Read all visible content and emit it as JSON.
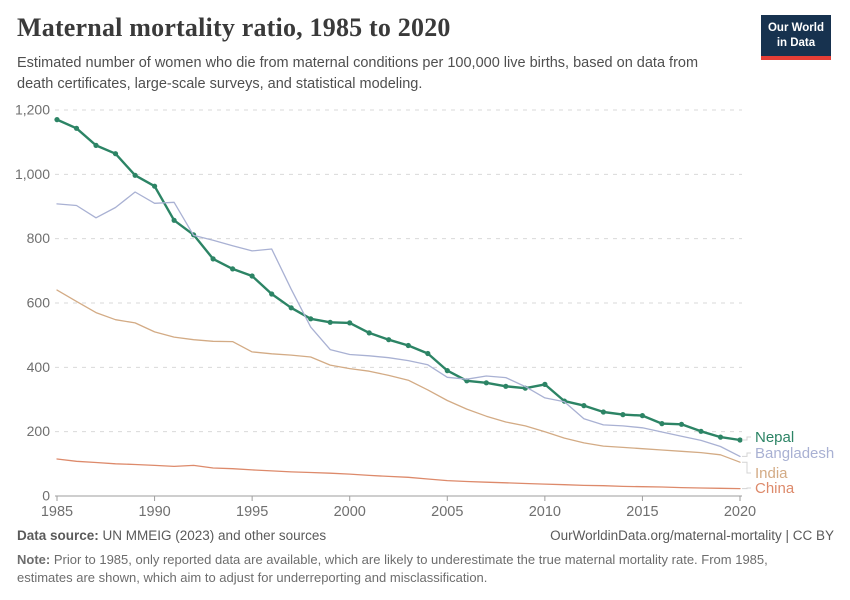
{
  "header": {
    "title": "Maternal mortality ratio, 1985 to 2020",
    "subtitle": "Estimated number of women who die from maternal conditions per 100,000 live births, based on data from death certificates, large-scale surveys, and statistical modeling."
  },
  "logo": {
    "line1": "Our World",
    "line2": "in Data",
    "bg_color": "#17324f",
    "accent_color": "#e63e36"
  },
  "footer": {
    "source_label": "Data source:",
    "source_text": " UN MMEIG (2023) and other sources",
    "link_text": "OurWorldinData.org/maternal-mortality | CC BY",
    "note_label": "Note:",
    "note_text": " Prior to 1985, only reported data are available, which are likely to underestimate the true maternal mortality rate. From 1985, estimates are shown, which aim to adjust for underreporting and misclassification."
  },
  "chart_data": {
    "type": "line",
    "title": "Maternal mortality ratio, 1985 to 2020",
    "xlabel": "",
    "ylabel": "",
    "x": [
      1985,
      1986,
      1987,
      1988,
      1989,
      1990,
      1991,
      1992,
      1993,
      1994,
      1995,
      1996,
      1997,
      1998,
      1999,
      2000,
      2001,
      2002,
      2003,
      2004,
      2005,
      2006,
      2007,
      2008,
      2009,
      2010,
      2011,
      2012,
      2013,
      2014,
      2015,
      2016,
      2017,
      2018,
      2019,
      2020
    ],
    "series": [
      {
        "name": "Nepal",
        "color": "#2c8465",
        "highlighted": true,
        "label_y": 437,
        "values": [
          1170,
          1143,
          1090,
          1064,
          997,
          963,
          857,
          812,
          737,
          706,
          684,
          628,
          585,
          551,
          540,
          538,
          507,
          486,
          468,
          443,
          390,
          358,
          352,
          341,
          335,
          347,
          295,
          281,
          261,
          253,
          250,
          225,
          223,
          201,
          183,
          174
        ]
      },
      {
        "name": "Bangladesh",
        "color": "#a9b1d3",
        "highlighted": false,
        "label_y": 453,
        "values": [
          908,
          903,
          865,
          897,
          945,
          910,
          913,
          810,
          795,
          778,
          762,
          768,
          643,
          525,
          455,
          440,
          436,
          430,
          421,
          408,
          369,
          363,
          373,
          368,
          340,
          305,
          293,
          240,
          221,
          218,
          212,
          199,
          186,
          173,
          154,
          123
        ]
      },
      {
        "name": "India",
        "color": "#d3ab85",
        "highlighted": false,
        "label_y": 473,
        "values": [
          640,
          605,
          570,
          548,
          538,
          510,
          494,
          486,
          481,
          480,
          448,
          442,
          438,
          432,
          407,
          396,
          388,
          375,
          360,
          330,
          297,
          270,
          248,
          230,
          218,
          200,
          180,
          165,
          155,
          151,
          147,
          143,
          139,
          135,
          128,
          105
        ]
      },
      {
        "name": "China",
        "color": "#dd8a6b",
        "highlighted": false,
        "label_y": 488,
        "values": [
          115,
          108,
          104,
          100,
          98,
          95,
          92,
          95,
          87,
          85,
          81,
          78,
          75,
          73,
          71,
          68,
          64,
          61,
          58,
          53,
          48,
          45,
          43,
          41,
          39,
          37,
          35,
          33,
          32,
          30,
          29,
          28,
          26,
          25,
          24,
          23
        ]
      }
    ],
    "ylim": [
      0,
      1200
    ],
    "yticks": [
      {
        "v": 0,
        "label": "0"
      },
      {
        "v": 200,
        "label": "200"
      },
      {
        "v": 400,
        "label": "400"
      },
      {
        "v": 600,
        "label": "600"
      },
      {
        "v": 800,
        "label": "800"
      },
      {
        "v": 1000,
        "label": "1,000"
      },
      {
        "v": 1200,
        "label": "1,200"
      }
    ],
    "xticks": [
      1985,
      1990,
      1995,
      2000,
      2005,
      2010,
      2015,
      2020
    ],
    "grid": "dashed-horizontal",
    "legend_position": "right"
  }
}
